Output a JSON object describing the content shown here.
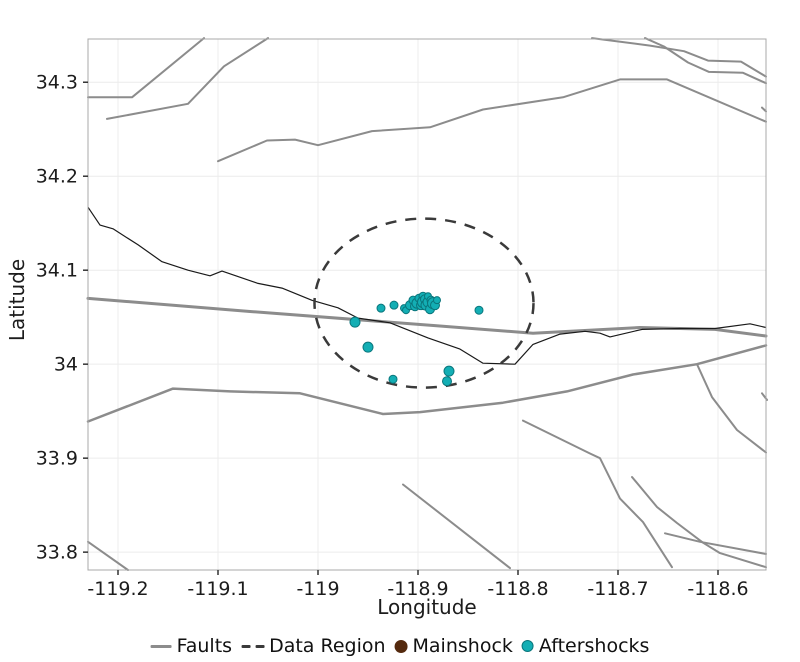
{
  "axes": {
    "xlabel": "Longitude",
    "ylabel": "Latitude"
  },
  "colors": {
    "fault": "#8c8c8c",
    "coast": "#1a1a1a",
    "region": "#3a3a3a",
    "mainshock": "#54290e",
    "mainshock_stroke": "#331805",
    "aftershock": "#13aeb4",
    "aftershock_stroke": "#0a767c",
    "grid": "#ececec",
    "border": "#a8a8a8",
    "tick": "#333333",
    "text": "#1c1c1c"
  },
  "legend": {
    "items": [
      {
        "label": "Faults",
        "swatch": "line",
        "color_key": "fault"
      },
      {
        "label": "Data Region",
        "swatch": "dashes",
        "color_key": "region"
      },
      {
        "label": "Mainshock",
        "swatch": "dot",
        "color_key": "mainshock"
      },
      {
        "label": "Aftershocks",
        "swatch": "dot",
        "color_key": "aftershock"
      }
    ]
  },
  "chart_data": {
    "type": "scatter",
    "title": "",
    "xlabel": "Longitude",
    "ylabel": "Latitude",
    "xlim": [
      -119.23,
      -118.552
    ],
    "ylim": [
      33.781,
      34.346
    ],
    "grid": true,
    "legend_position": "bottom",
    "xticks": {
      "values": [
        -119.2,
        -119.1,
        -119.0,
        -118.9,
        -118.8,
        -118.7,
        -118.6
      ],
      "labels": [
        "-119.2",
        "-119.1",
        "-119",
        "-118.9",
        "-118.8",
        "-118.7",
        "-118.6"
      ]
    },
    "yticks": {
      "values": [
        33.8,
        33.9,
        34.0,
        34.1,
        34.2,
        34.3
      ],
      "labels": [
        "33.8",
        "33.9",
        "34",
        "34.1",
        "34.2",
        "34.3"
      ]
    },
    "faults": [
      {
        "w": 2,
        "points": [
          [
            -119.23,
            34.284
          ],
          [
            -119.186,
            34.284
          ],
          [
            -119.114,
            34.347
          ]
        ]
      },
      {
        "w": 2,
        "points": [
          [
            -119.211,
            34.261
          ],
          [
            -119.13,
            34.277
          ],
          [
            -119.094,
            34.317
          ],
          [
            -119.05,
            34.347
          ]
        ]
      },
      {
        "w": 2,
        "points": [
          [
            -119.1,
            34.216
          ],
          [
            -119.051,
            34.238
          ],
          [
            -119.023,
            34.239
          ],
          [
            -119.0,
            34.233
          ],
          [
            -118.946,
            34.248
          ],
          [
            -118.888,
            34.252
          ],
          [
            -118.835,
            34.271
          ],
          [
            -118.755,
            34.284
          ],
          [
            -118.698,
            34.303
          ],
          [
            -118.651,
            34.303
          ],
          [
            -118.552,
            34.258
          ]
        ]
      },
      {
        "w": 2,
        "points": [
          [
            -118.726,
            34.347
          ],
          [
            -118.668,
            34.339
          ],
          [
            -118.634,
            34.333
          ],
          [
            -118.61,
            34.323
          ],
          [
            -118.577,
            34.322
          ],
          [
            -118.552,
            34.306
          ]
        ]
      },
      {
        "w": 2,
        "points": [
          [
            -118.673,
            34.347
          ],
          [
            -118.654,
            34.338
          ],
          [
            -118.63,
            34.321
          ],
          [
            -118.609,
            34.311
          ],
          [
            -118.575,
            34.31
          ],
          [
            -118.552,
            34.299
          ]
        ]
      },
      {
        "w": 3,
        "points": [
          [
            -119.23,
            34.07
          ],
          [
            -119.068,
            34.056
          ],
          [
            -118.883,
            34.041
          ],
          [
            -118.785,
            34.033
          ],
          [
            -118.678,
            34.039
          ],
          [
            -118.603,
            34.037
          ],
          [
            -118.552,
            34.03
          ]
        ]
      },
      {
        "w": 2.5,
        "points": [
          [
            -119.23,
            33.939
          ],
          [
            -119.145,
            33.974
          ],
          [
            -119.088,
            33.971
          ],
          [
            -119.018,
            33.969
          ],
          [
            -118.935,
            33.947
          ],
          [
            -118.898,
            33.949
          ],
          [
            -118.815,
            33.959
          ],
          [
            -118.751,
            33.971
          ],
          [
            -118.685,
            33.989
          ],
          [
            -118.621,
            34.0
          ],
          [
            -118.552,
            34.02
          ]
        ]
      },
      {
        "w": 2,
        "points": [
          [
            -119.23,
            33.811
          ],
          [
            -119.19,
            33.781
          ]
        ]
      },
      {
        "w": 2,
        "points": [
          [
            -118.915,
            33.872
          ],
          [
            -118.808,
            33.783
          ]
        ]
      },
      {
        "w": 2,
        "points": [
          [
            -118.795,
            33.94
          ],
          [
            -118.728,
            33.905
          ],
          [
            -118.718,
            33.9
          ],
          [
            -118.698,
            33.857
          ],
          [
            -118.675,
            33.832
          ],
          [
            -118.646,
            33.784
          ]
        ]
      },
      {
        "w": 2,
        "points": [
          [
            -118.686,
            33.88
          ],
          [
            -118.661,
            33.848
          ],
          [
            -118.641,
            33.831
          ],
          [
            -118.615,
            33.81
          ],
          [
            -118.598,
            33.799
          ],
          [
            -118.552,
            33.784
          ]
        ]
      },
      {
        "w": 2,
        "points": [
          [
            -118.653,
            33.82
          ],
          [
            -118.618,
            33.811
          ],
          [
            -118.552,
            33.798
          ]
        ]
      },
      {
        "w": 2,
        "points": [
          [
            -118.621,
            34.0
          ],
          [
            -118.606,
            33.965
          ],
          [
            -118.581,
            33.93
          ],
          [
            -118.552,
            33.906
          ]
        ]
      },
      {
        "w": 2,
        "points": [
          [
            -118.556,
            34.273
          ],
          [
            -118.552,
            34.269
          ]
        ]
      },
      {
        "w": 2,
        "points": [
          [
            -118.556,
            33.969
          ],
          [
            -118.551,
            33.962
          ]
        ]
      }
    ],
    "coastline": [
      [
        -119.23,
        34.167
      ],
      [
        -119.218,
        34.148
      ],
      [
        -119.205,
        34.144
      ],
      [
        -119.18,
        34.127
      ],
      [
        -119.156,
        34.109
      ],
      [
        -119.13,
        34.1
      ],
      [
        -119.108,
        34.094
      ],
      [
        -119.096,
        34.099
      ],
      [
        -119.06,
        34.086
      ],
      [
        -119.036,
        34.081
      ],
      [
        -119.006,
        34.068
      ],
      [
        -118.98,
        34.06
      ],
      [
        -118.96,
        34.049
      ],
      [
        -118.928,
        34.044
      ],
      [
        -118.89,
        34.028
      ],
      [
        -118.858,
        34.016
      ],
      [
        -118.835,
        34.001
      ],
      [
        -118.803,
        34.0
      ],
      [
        -118.785,
        34.021
      ],
      [
        -118.758,
        34.032
      ],
      [
        -118.733,
        34.035
      ],
      [
        -118.718,
        34.033
      ],
      [
        -118.708,
        34.029
      ],
      [
        -118.676,
        34.037
      ],
      [
        -118.638,
        34.038
      ],
      [
        -118.603,
        34.038
      ],
      [
        -118.568,
        34.043
      ],
      [
        -118.552,
        34.039
      ]
    ],
    "data_region": {
      "center": [
        -118.894,
        34.065
      ],
      "radius_lon": 0.1095,
      "radius_lat": 0.0899
    },
    "mainshock": {
      "lon": -118.894,
      "lat": 34.065,
      "size": 6.5
    },
    "aftershocks": [
      [
        -118.963,
        34.0447,
        5.0
      ],
      [
        -118.937,
        34.0596,
        4.0
      ],
      [
        -118.924,
        34.0628,
        4.0
      ],
      [
        -118.914,
        34.0596,
        3.5
      ],
      [
        -118.912,
        34.0574,
        3.5
      ],
      [
        -118.908,
        34.0628,
        4.5
      ],
      [
        -118.905,
        34.0681,
        4.0
      ],
      [
        -118.903,
        34.0617,
        4.5
      ],
      [
        -118.901,
        34.0649,
        5.0
      ],
      [
        -118.899,
        34.0702,
        4.0
      ],
      [
        -118.897,
        34.0628,
        4.5
      ],
      [
        -118.895,
        34.0723,
        4.0
      ],
      [
        -118.895,
        34.066,
        5.5
      ],
      [
        -118.893,
        34.0691,
        4.5
      ],
      [
        -118.892,
        34.0628,
        5.0
      ],
      [
        -118.89,
        34.066,
        5.0
      ],
      [
        -118.89,
        34.0723,
        3.5
      ],
      [
        -118.888,
        34.0585,
        4.5
      ],
      [
        -118.887,
        34.0681,
        4.0
      ],
      [
        -118.885,
        34.0649,
        5.5
      ],
      [
        -118.883,
        34.0628,
        4.5
      ],
      [
        -118.881,
        34.0681,
        3.5
      ],
      [
        -118.839,
        34.0574,
        4.0
      ],
      [
        -118.95,
        34.0181,
        5.0
      ],
      [
        -118.925,
        33.984,
        4.0
      ],
      [
        -118.869,
        33.9926,
        5.0
      ],
      [
        -118.871,
        33.9819,
        4.5
      ]
    ]
  }
}
